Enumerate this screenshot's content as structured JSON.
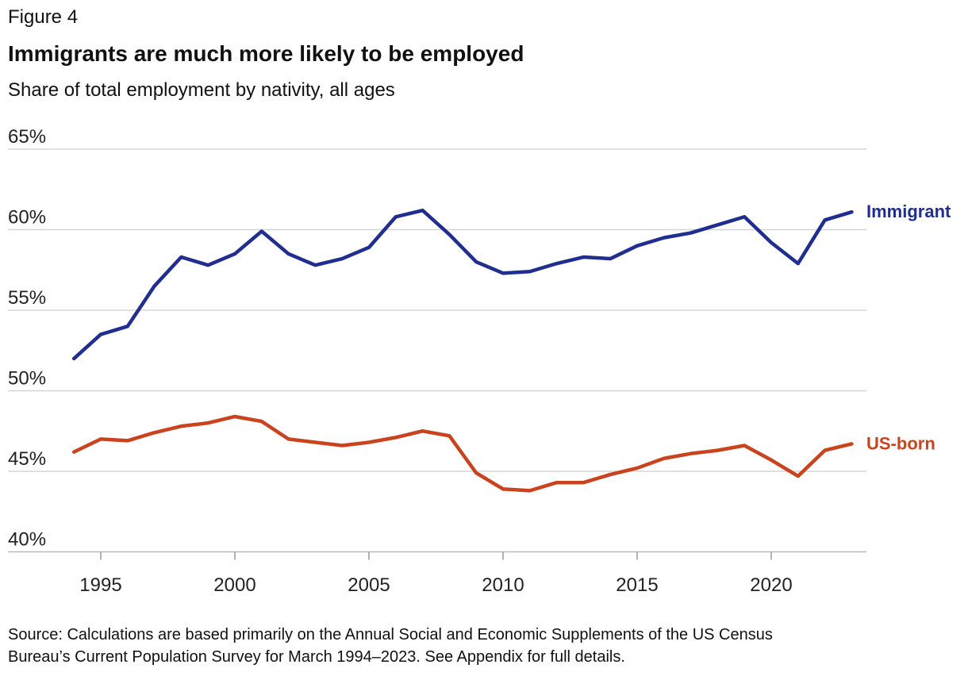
{
  "figure_label": "Figure 4",
  "source": [
    "Source: Calculations are based primarily on the Annual Social and Economic Supplements of the US Census",
    "Bureau’s Current Population Survey for March 1994–2023. See Appendix for full details."
  ],
  "chart_data": {
    "type": "line",
    "title": "Immigrants are much more likely to be employed",
    "subtitle": "Share of total employment by nativity, all ages",
    "xlabel": "",
    "ylabel": "",
    "ylim": [
      40,
      65
    ],
    "yticks": [
      "40%",
      "45%",
      "50%",
      "55%",
      "60%",
      "65%"
    ],
    "ytick_values": [
      40,
      45,
      50,
      55,
      60,
      65
    ],
    "xticks": [
      "1995",
      "2000",
      "2005",
      "2010",
      "2015",
      "2020"
    ],
    "xtick_values": [
      1995,
      2000,
      2005,
      2010,
      2015,
      2020
    ],
    "grid": "horizontal",
    "legend": "direct labels at right end of lines",
    "x": [
      1994,
      1995,
      1996,
      1997,
      1998,
      1999,
      2000,
      2001,
      2002,
      2003,
      2004,
      2005,
      2006,
      2007,
      2008,
      2009,
      2010,
      2011,
      2012,
      2013,
      2014,
      2015,
      2016,
      2017,
      2018,
      2019,
      2020,
      2021,
      2022,
      2023
    ],
    "series": [
      {
        "name": "Immigrant",
        "color": "#1f2e8f",
        "values": [
          52.0,
          53.5,
          54.0,
          56.5,
          58.3,
          57.8,
          58.5,
          59.9,
          58.5,
          57.8,
          58.2,
          58.9,
          60.8,
          61.2,
          59.7,
          58.0,
          57.3,
          57.4,
          57.9,
          58.3,
          58.2,
          59.0,
          59.5,
          59.8,
          60.3,
          60.8,
          59.2,
          57.9,
          60.6,
          61.1
        ]
      },
      {
        "name": "US-born",
        "color": "#c8431e",
        "values": [
          46.2,
          47.0,
          46.9,
          47.4,
          47.8,
          48.0,
          48.4,
          48.1,
          47.0,
          46.8,
          46.6,
          46.8,
          47.1,
          47.5,
          47.2,
          44.9,
          43.9,
          43.8,
          44.3,
          44.3,
          44.8,
          45.2,
          45.8,
          46.1,
          46.3,
          46.6,
          45.7,
          44.7,
          46.3,
          46.7
        ]
      }
    ]
  }
}
